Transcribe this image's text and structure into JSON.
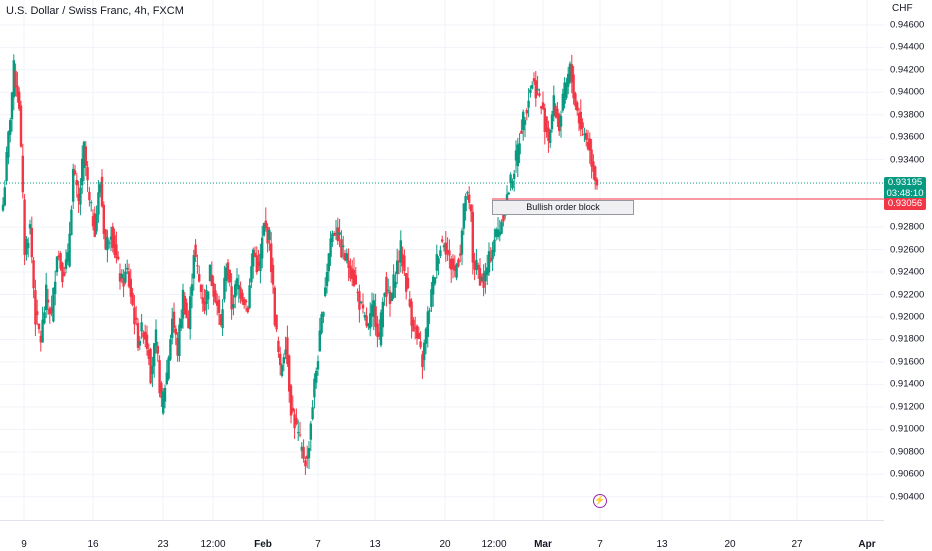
{
  "header": {
    "title": "U.S. Dollar / Swiss Franc, 4h, FXCM"
  },
  "price_axis": {
    "currency": "CHF",
    "ticks": [
      "0.94600",
      "0.94400",
      "0.94200",
      "0.94000",
      "0.93800",
      "0.93600",
      "0.93400",
      "0.93195",
      "0.92800",
      "0.92600",
      "0.92400",
      "0.92200",
      "0.92000",
      "0.91800",
      "0.91600",
      "0.91400",
      "0.91200",
      "0.91000",
      "0.90800",
      "0.90600",
      "0.90400"
    ]
  },
  "time_axis": {
    "labels": [
      {
        "text": "9",
        "bold": false
      },
      {
        "text": "16",
        "bold": false
      },
      {
        "text": "23",
        "bold": false
      },
      {
        "text": "12:00",
        "bold": false
      },
      {
        "text": "Feb",
        "bold": true
      },
      {
        "text": "7",
        "bold": false
      },
      {
        "text": "13",
        "bold": false
      },
      {
        "text": "20",
        "bold": false
      },
      {
        "text": "12:00",
        "bold": false
      },
      {
        "text": "Mar",
        "bold": true
      },
      {
        "text": "7",
        "bold": false
      },
      {
        "text": "13",
        "bold": false
      },
      {
        "text": "20",
        "bold": false
      },
      {
        "text": "27",
        "bold": false
      },
      {
        "text": "Apr",
        "bold": true
      }
    ]
  },
  "current_price": {
    "value": "0.93195",
    "countdown": "03:48:10",
    "color": "#089981"
  },
  "order_block_price": {
    "value": "0.93056",
    "color": "#f23645"
  },
  "annotation": {
    "text": "Bullish order block"
  },
  "colors": {
    "up": "#089981",
    "down": "#f23645",
    "grid": "#f0f3fa"
  },
  "chart_data": {
    "type": "candlestick",
    "title": "U.S. Dollar / Swiss Franc, 4h, FXCM",
    "ylabel": "CHF",
    "ylim": [
      0.903,
      0.9475
    ],
    "x_range": [
      "Jan 7",
      "Apr 2"
    ],
    "anchors": [
      [
        0.93,
        0.936,
        0.942,
        0.939,
        0.926,
        0.928,
        0.92,
        0.918,
        0.922,
        0.92,
        0.926,
        0.924,
        0.925,
        0.933,
        0.93,
        0.935,
        0.93,
        0.928,
        0.932,
        0.926,
        0.928,
        0.925,
        0.923,
        0.924,
        0.921,
        0.918,
        0.919,
        0.917
      ],
      [
        0.915,
        0.918,
        0.912,
        0.915,
        0.92,
        0.917,
        0.922,
        0.919,
        0.926,
        0.923,
        0.921,
        0.924,
        0.922,
        0.919,
        0.925,
        0.921,
        0.923,
        0.922,
        0.921,
        0.926,
        0.924,
        0.928,
        0.927,
        0.92,
        0.915,
        0.918,
        0.912,
        0.91,
        0.908,
        0.907
      ],
      [
        0.909,
        0.914,
        0.918,
        0.923,
        0.927,
        0.928,
        0.926,
        0.925,
        0.924,
        0.922,
        0.92,
        0.919,
        0.921,
        0.918,
        0.923,
        0.921,
        0.924,
        0.926,
        0.923,
        0.92,
        0.918,
        0.916,
        0.92,
        0.923,
        0.926,
        0.927,
        0.925,
        0.924,
        0.926,
        0.931,
        0.929
      ],
      [
        0.925,
        0.924,
        0.923,
        0.925,
        0.927,
        0.928,
        0.93,
        0.932,
        0.934,
        0.937,
        0.939,
        0.941,
        0.94,
        0.938,
        0.936,
        0.939,
        0.937,
        0.94,
        0.942,
        0.939,
        0.937,
        0.936,
        0.934,
        0.932
      ]
    ],
    "horizontal_lines": [
      {
        "label": "0.93195",
        "style": "dotted"
      },
      {
        "label": "0.93056",
        "style": "solid"
      }
    ],
    "annotations": [
      "Bullish order block"
    ]
  }
}
